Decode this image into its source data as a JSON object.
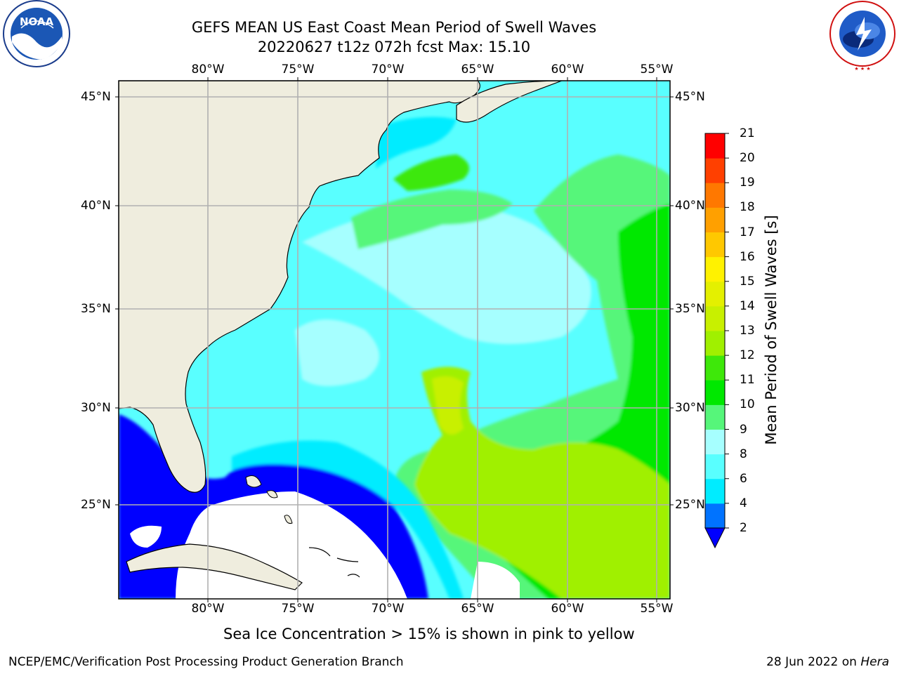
{
  "header": {
    "title_line1": "GEFS MEAN US East Coast Mean Period of Swell Waves",
    "title_line2": "20220627 t12z 072h fcst   Max: 15.10"
  },
  "logos": {
    "noaa_text": "NOAA",
    "noaa_ring_text": "NATIONAL OCEANIC AND ATMOSPHERIC ADMINISTRATION · U.S. DEPARTMENT OF COMMERCE",
    "nws_ring_text": "NATIONAL WEATHER SERVICE"
  },
  "map": {
    "lon_ticks": [
      "80°W",
      "75°W",
      "70°W",
      "65°W",
      "60°W",
      "55°W"
    ],
    "lat_ticks": [
      "45°N",
      "40°N",
      "35°N",
      "30°N",
      "25°N"
    ],
    "land_color": "#efedde",
    "missing_color": "#ffffff",
    "grid_color": "#b0b0b0"
  },
  "colorbar": {
    "title": "Mean Period of Swell Waves [s]",
    "levels": [
      "2",
      "4",
      "6",
      "8",
      "9",
      "10",
      "11",
      "12",
      "13",
      "14",
      "15",
      "16",
      "17",
      "18",
      "19",
      "20",
      "21"
    ],
    "colors": [
      "#0073ff",
      "#00ecff",
      "#59ffff",
      "#a6ffff",
      "#56f67a",
      "#00e800",
      "#3ee80a",
      "#a0f000",
      "#c8f000",
      "#e4f000",
      "#fff200",
      "#ffc800",
      "#ffa000",
      "#ff7800",
      "#ff4000",
      "#ff0000"
    ],
    "under_color": "#0000ff"
  },
  "note": "Sea Ice Concentration > 15% is shown in pink to yellow",
  "footer": {
    "left": "NCEP/EMC/Verification Post Processing Product Generation Branch",
    "date": "28 Jun 2022 on ",
    "machine": "Hera"
  }
}
